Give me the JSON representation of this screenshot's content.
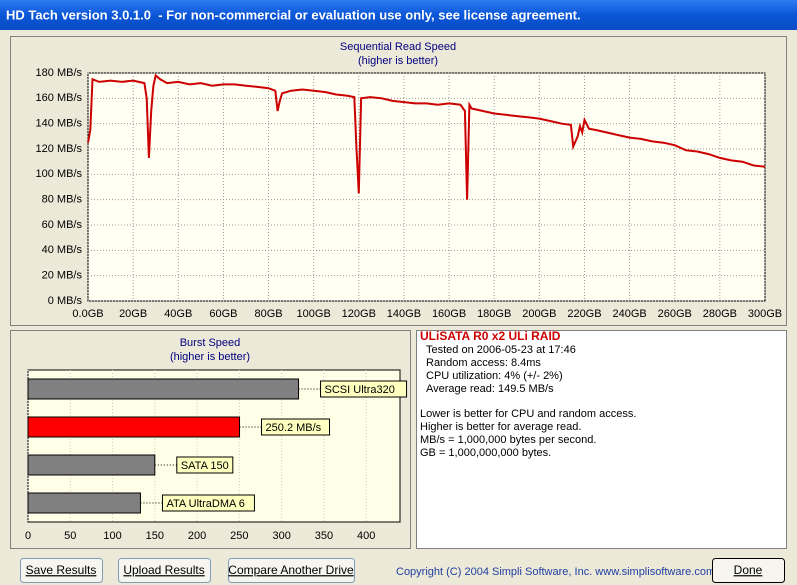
{
  "window": {
    "title": "HD Tach version 3.0.1.0  - For non-commercial or evaluation use only, see license agreement."
  },
  "chart_data": [
    {
      "type": "line",
      "title": "Sequential Read Speed",
      "subtitle": "(higher is better)",
      "color": "#cc0000",
      "grid": true,
      "x": [
        0,
        1,
        2,
        5,
        10,
        15,
        20,
        25,
        26,
        27,
        28,
        29,
        30,
        32,
        35,
        40,
        45,
        50,
        55,
        60,
        65,
        70,
        75,
        80,
        83,
        84,
        85,
        86,
        90,
        95,
        100,
        105,
        110,
        115,
        118,
        119,
        120,
        121,
        125,
        130,
        135,
        140,
        145,
        150,
        155,
        160,
        165,
        167,
        168,
        169,
        170,
        175,
        180,
        185,
        190,
        195,
        200,
        205,
        210,
        214,
        215,
        217,
        218,
        219,
        220,
        222,
        225,
        230,
        235,
        240,
        245,
        250,
        255,
        260,
        265,
        270,
        275,
        280,
        285,
        290,
        295,
        300
      ],
      "values": [
        125,
        135,
        175,
        173,
        174,
        173,
        174,
        172,
        160,
        113,
        150,
        170,
        178,
        175,
        172,
        173,
        171,
        172,
        170,
        171,
        171,
        170,
        169,
        168,
        166,
        150,
        158,
        164,
        166,
        167,
        166,
        165,
        163,
        162,
        161,
        120,
        85,
        160,
        161,
        160,
        158,
        157,
        156,
        156,
        155,
        156,
        155,
        150,
        80,
        155,
        152,
        150,
        148,
        147,
        146,
        145,
        144,
        142,
        140,
        139,
        122,
        130,
        138,
        133,
        143,
        136,
        135,
        133,
        131,
        129,
        128,
        126,
        125,
        123,
        119,
        118,
        116,
        113,
        111,
        110,
        107,
        106
      ],
      "xlim": [
        0,
        300
      ],
      "xticks": [
        {
          "value": 0,
          "label": "0.0GB"
        },
        {
          "value": 20,
          "label": "20GB"
        },
        {
          "value": 40,
          "label": "40GB"
        },
        {
          "value": 60,
          "label": "60GB"
        },
        {
          "value": 80,
          "label": "80GB"
        },
        {
          "value": 100,
          "label": "100GB"
        },
        {
          "value": 120,
          "label": "120GB"
        },
        {
          "value": 140,
          "label": "140GB"
        },
        {
          "value": 160,
          "label": "160GB"
        },
        {
          "value": 180,
          "label": "180GB"
        },
        {
          "value": 200,
          "label": "200GB"
        },
        {
          "value": 220,
          "label": "220GB"
        },
        {
          "value": 240,
          "label": "240GB"
        },
        {
          "value": 260,
          "label": "260GB"
        },
        {
          "value": 280,
          "label": "280GB"
        },
        {
          "value": 300,
          "label": "300GB"
        }
      ],
      "ylim": [
        0,
        180
      ],
      "yticks": [
        {
          "value": 0,
          "label": "0 MB/s"
        },
        {
          "value": 20,
          "label": "20 MB/s"
        },
        {
          "value": 40,
          "label": "40 MB/s"
        },
        {
          "value": 60,
          "label": "60 MB/s"
        },
        {
          "value": 80,
          "label": "80 MB/s"
        },
        {
          "value": 100,
          "label": "100 MB/s"
        },
        {
          "value": 120,
          "label": "120 MB/s"
        },
        {
          "value": 140,
          "label": "140 MB/s"
        },
        {
          "value": 160,
          "label": "160 MB/s"
        },
        {
          "value": 180,
          "label": "180 MB/s"
        }
      ]
    },
    {
      "type": "hbar",
      "title": "Burst Speed",
      "subtitle": "(higher is better)",
      "grid": true,
      "categories": [
        "SCSI Ultra320",
        null,
        "SATA 150",
        "ATA UltraDMA 6"
      ],
      "values": [
        320,
        250.2,
        150,
        133
      ],
      "value_labels": [
        null,
        "250.2 MB/s",
        null,
        null
      ],
      "colors": [
        "#808080",
        "#ff0000",
        "#808080",
        "#808080"
      ],
      "xlim": [
        0,
        440
      ],
      "xticks": [
        0,
        50,
        100,
        150,
        200,
        250,
        300,
        350,
        400
      ]
    }
  ],
  "info": {
    "title": "ULiSATA R0 x2 ULi RAID",
    "lines": [
      "Tested on 2006-05-23 at 17:46",
      "Random access: 8.4ms",
      "CPU utilization: 4% (+/- 2%)",
      "Average read: 149.5 MB/s"
    ],
    "notes": [
      "Lower is better for CPU and random access.",
      "Higher is better for average read.",
      "MB/s = 1,000,000 bytes per second.",
      "GB = 1,000,000,000 bytes."
    ]
  },
  "buttons": [
    "Save Results",
    "Upload Results",
    "Compare Another Drive",
    "Done"
  ],
  "copyright": "Copyright (C) 2004 Simpli Software, Inc. www.simplisoftware.com"
}
